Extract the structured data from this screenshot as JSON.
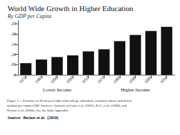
{
  "chart_data": {
    "type": "bar",
    "title": "World Wide Growth in Higher Education",
    "subtitle": "By GDP per Capita",
    "categories": [
      "1970",
      "1980",
      "1990",
      "2000",
      "2010",
      "1970",
      "1980",
      "1990",
      "2000",
      "2010"
    ],
    "groups": [
      "Lower Income",
      "Higher Income"
    ],
    "values": [
      0.057,
      0.075,
      0.087,
      0.095,
      0.115,
      0.125,
      0.165,
      0.195,
      0.215,
      0.235
    ],
    "color": "#111111",
    "ylim": [
      0,
      0.265
    ],
    "yticks": [
      {
        "value": 0.0,
        "label": ".0"
      },
      {
        "value": 0.05,
        "label": ".05"
      },
      {
        "value": 0.1,
        "label": ".10"
      },
      {
        "value": 0.15,
        "label": ".15"
      },
      {
        "value": 0.2,
        "label": ".20"
      },
      {
        "value": 0.25,
        "label": ".25"
      }
    ],
    "grid": false,
    "annotations": [
      "Figure 1.—Fraction of 30-34-year-olds with college education, countries above and below\nmedian per capita GDP. Sources: Analysis of Lutz et al. (2007), K.C. et al. (2008), and\nHeston et al. (2006). See the Data Appendix.",
      "Source:  Becker et al.  (2010)"
    ]
  }
}
